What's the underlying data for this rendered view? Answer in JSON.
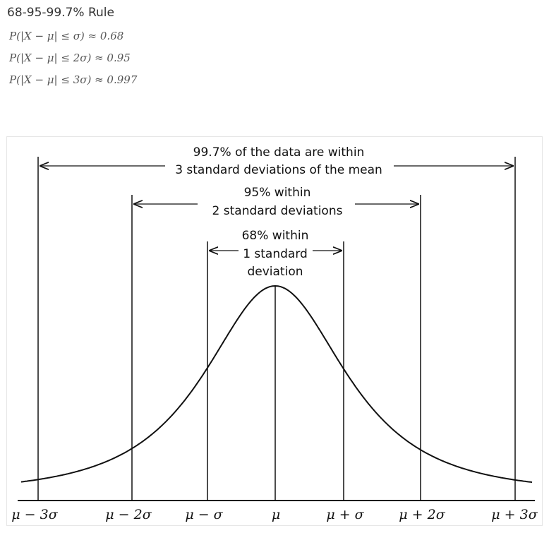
{
  "header": {
    "title": "68-95-99.7% Rule",
    "formulas": [
      "P(|X − μ| ≤ σ) ≈ 0.68",
      "P(|X − μ| ≤ 2σ) ≈ 0.95",
      "P(|X − μ| ≤ 3σ) ≈ 0.997"
    ]
  },
  "diagram": {
    "annotations": {
      "three_sd": [
        "99.7% of the data are within",
        "3 standard deviations of the mean"
      ],
      "two_sd": [
        "95% within",
        "2 standard deviations"
      ],
      "one_sd": [
        "68% within",
        "1 standard",
        "deviation"
      ]
    },
    "ticks": [
      "μ − 3σ",
      "μ − 2σ",
      "μ − σ",
      "μ",
      "μ + σ",
      "μ + 2σ",
      "μ + 3σ"
    ]
  }
}
